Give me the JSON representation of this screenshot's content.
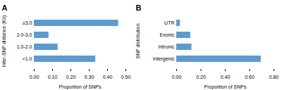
{
  "chart_data": [
    {
      "type": "bar",
      "orientation": "horizontal",
      "title": "A",
      "categories": [
        "<1.0",
        "1.0-2.0",
        "2.0-3.0",
        "≥3.0"
      ],
      "values": [
        0.335,
        0.13,
        0.08,
        0.46
      ],
      "color": "#5B9BD5",
      "xlabel": "Proportion of SNPs",
      "ylabel": "Inter-SNP distance (Kb)",
      "xlim": [
        0,
        0.5
      ],
      "xticks": [
        {
          "value": 0.0,
          "label": "0.00"
        },
        {
          "value": 0.1,
          "label": "0.10"
        },
        {
          "value": 0.2,
          "label": "0.20"
        },
        {
          "value": 0.3,
          "label": "0.30"
        },
        {
          "value": 0.4,
          "label": "0.40"
        },
        {
          "value": 0.5,
          "label": "0.50"
        }
      ]
    },
    {
      "type": "bar",
      "orientation": "horizontal",
      "title": "B",
      "categories": [
        "Intergenic",
        "Intronic",
        "Exonic",
        "UTR"
      ],
      "values": [
        0.695,
        0.125,
        0.115,
        0.03
      ],
      "color": "#5B9BD5",
      "xlabel": "Proportion of SNPs",
      "ylabel": "SNP distribution",
      "xlim": [
        0,
        0.8
      ],
      "xticks": [
        {
          "value": 0.0,
          "label": "0.00"
        },
        {
          "value": 0.2,
          "label": "0.20"
        },
        {
          "value": 0.4,
          "label": "0.40"
        },
        {
          "value": 0.6,
          "label": "0.60"
        },
        {
          "value": 0.8,
          "label": "0.80"
        }
      ]
    }
  ]
}
